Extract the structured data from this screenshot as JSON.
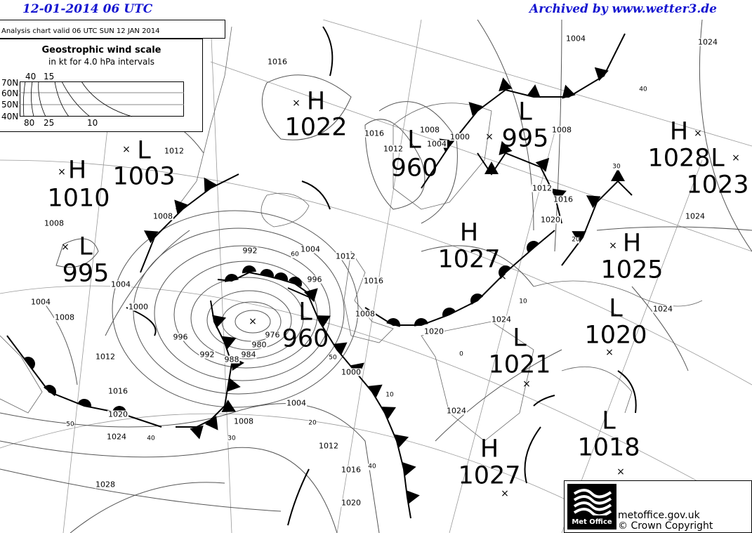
{
  "header": {
    "date_time": "12-01-2014  06 UTC",
    "archive": "Archived by www.wetter3.de"
  },
  "chart_title": "Analysis chart  valid 06 UTC SUN 12  JAN 2014",
  "wind_scale": {
    "title": "Geostrophic wind scale",
    "subtitle": "in kt for 4.0 hPa intervals",
    "latitudes": [
      "70N",
      "60N",
      "50N",
      "40N"
    ],
    "top_labels": [
      "40",
      "15"
    ],
    "bottom_labels": [
      "80",
      "25",
      "10"
    ]
  },
  "pressure_centers": [
    {
      "type": "H",
      "value": "1022"
    },
    {
      "type": "L",
      "value": "1003"
    },
    {
      "type": "H",
      "value": "1010"
    },
    {
      "type": "L",
      "value": "995"
    },
    {
      "type": "L",
      "value": "960"
    },
    {
      "type": "L",
      "value": "960"
    },
    {
      "type": "L",
      "value": "995"
    },
    {
      "type": "H",
      "value": "1028"
    },
    {
      "type": "L",
      "value": "1023"
    },
    {
      "type": "H",
      "value": "1027"
    },
    {
      "type": "H",
      "value": "1025"
    },
    {
      "type": "L",
      "value": "1020"
    },
    {
      "type": "L",
      "value": "1021"
    },
    {
      "type": "L",
      "value": "1018"
    },
    {
      "type": "H",
      "value": "1027"
    }
  ],
  "isobar_labels": [
    "1016",
    "1004",
    "1024",
    "1016",
    "1012",
    "1008",
    "1004",
    "1000",
    "1008",
    "1012",
    "1016",
    "1020",
    "1024",
    "1012",
    "1008",
    "1008",
    "1004",
    "1000",
    "1004",
    "1008",
    "992",
    "1004",
    "996",
    "1012",
    "1016",
    "1008",
    "1020",
    "1024",
    "1024",
    "996",
    "992",
    "988",
    "984",
    "980",
    "976",
    "1000",
    "1004",
    "1008",
    "1012",
    "1016",
    "1020",
    "1012",
    "1016",
    "1020",
    "1024",
    "1028",
    "1024"
  ],
  "wind_labels": [
    "60",
    "50",
    "20",
    "30",
    "40",
    "50",
    "10",
    "40",
    "0",
    "10",
    "20",
    "30",
    "40"
  ],
  "footer": {
    "logo_text": "Met Office",
    "site": "metoffice.gov.uk",
    "copyright": "© Crown Copyright"
  },
  "colors": {
    "header": "#1515d0",
    "lines": "#000000",
    "isobars": "#555555",
    "grid": "#999999"
  }
}
